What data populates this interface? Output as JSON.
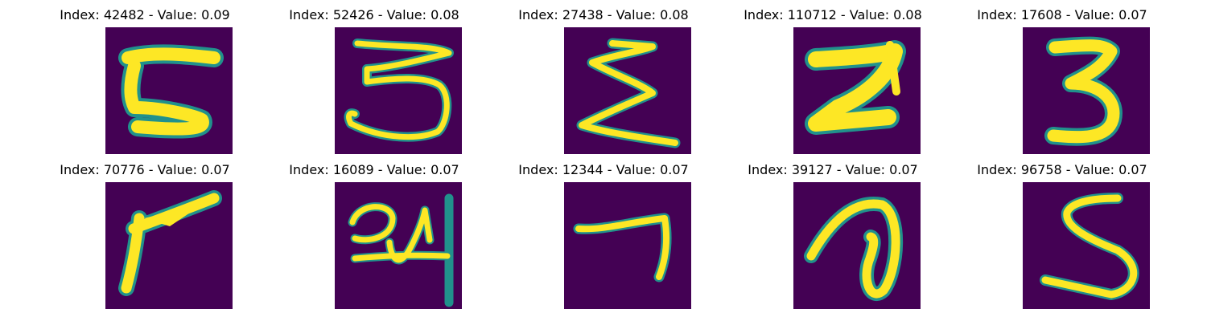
{
  "colors": {
    "background": "#440154",
    "stroke_core": "#fde725",
    "stroke_edge": "#21918c"
  },
  "panels": [
    {
      "title": "Index: 42482 - Value: 0.09",
      "glyph": "5"
    },
    {
      "title": "Index: 52426 - Value: 0.08",
      "glyph": "3"
    },
    {
      "title": "Index: 27438 - Value: 0.08",
      "glyph": "sigma"
    },
    {
      "title": "Index: 110712 - Value: 0.08",
      "glyph": "Z"
    },
    {
      "title": "Index: 17608 - Value: 0.07",
      "glyph": "3"
    },
    {
      "title": "Index: 70776 - Value: 0.07",
      "glyph": "7-bold"
    },
    {
      "title": "Index: 16089 - Value: 0.07",
      "glyph": "24"
    },
    {
      "title": "Index: 12344 - Value: 0.07",
      "glyph": "7-thin"
    },
    {
      "title": "Index: 39127 - Value: 0.07",
      "glyph": "loop"
    },
    {
      "title": "Index: 96758 - Value: 0.07",
      "glyph": "S"
    }
  ]
}
